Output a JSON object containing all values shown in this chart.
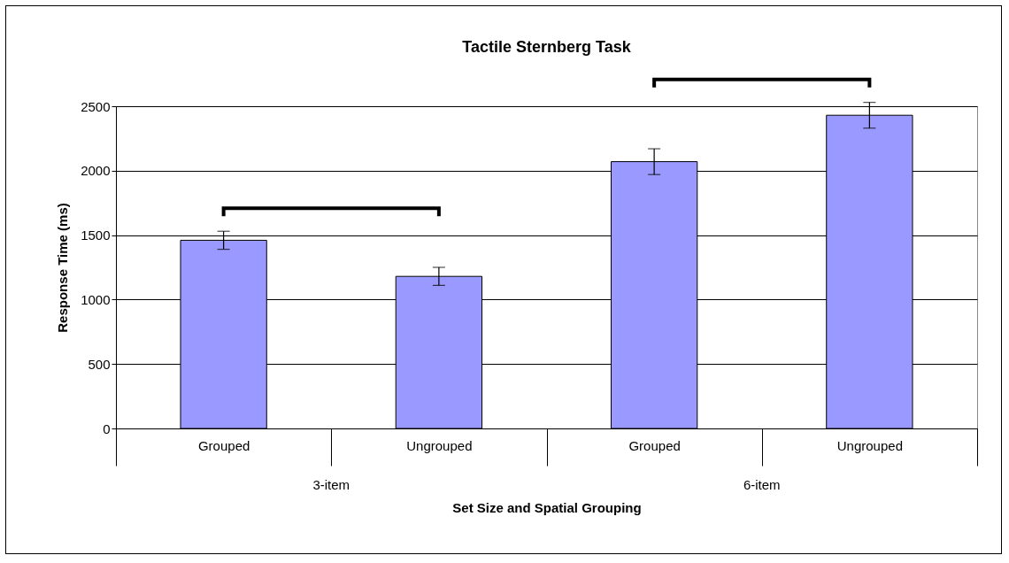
{
  "chart_data": {
    "type": "bar",
    "title": "Tactile Sternberg Task",
    "xlabel": "Set Size and Spatial Grouping",
    "ylabel": "Response Time (ms)",
    "categories": [
      "Grouped",
      "Ungrouped",
      "Grouped",
      "Ungrouped"
    ],
    "series": [
      {
        "color": "#9999ff",
        "values": [
          1460,
          1180,
          2070,
          2430
        ],
        "errors": [
          70,
          70,
          100,
          100
        ]
      }
    ],
    "annotations": [
      "3-item",
      "6-item"
    ],
    "ylim": [
      0,
      2500
    ],
    "yticks": [
      0,
      500,
      1000,
      1500,
      2000,
      2500
    ],
    "grid": "y"
  }
}
